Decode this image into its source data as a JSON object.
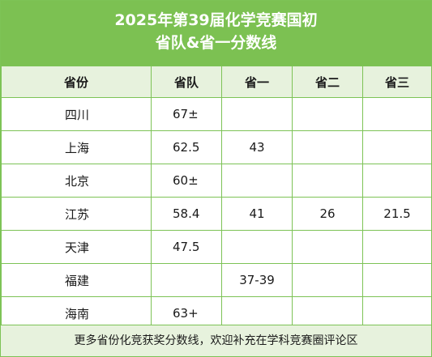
{
  "header": {
    "title_line1": "2025年第39届化学竞赛国初",
    "title_line2": "省队&省一分数线"
  },
  "table": {
    "columns": [
      "省份",
      "省队",
      "省一",
      "省二",
      "省三"
    ],
    "rows": [
      {
        "province": "四川",
        "team": "67±",
        "first": "",
        "second": "",
        "third": ""
      },
      {
        "province": "上海",
        "team": "62.5",
        "first": "43",
        "second": "",
        "third": ""
      },
      {
        "province": "北京",
        "team": "60±",
        "first": "",
        "second": "",
        "third": ""
      },
      {
        "province": "江苏",
        "team": "58.4",
        "first": "41",
        "second": "26",
        "third": "21.5"
      },
      {
        "province": "天津",
        "team": "47.5",
        "first": "",
        "second": "",
        "third": ""
      },
      {
        "province": "福建",
        "team": "",
        "first": "37-39",
        "second": "",
        "third": ""
      },
      {
        "province": "海南",
        "team": "63+",
        "first": "",
        "second": "",
        "third": ""
      }
    ]
  },
  "footer": {
    "note": "更多省份化竞获奖分数线，欢迎补充在学科竞赛圈评论区"
  },
  "colors": {
    "header_green": "#7cc152",
    "border_green": "#7dc356",
    "light_green": "#e7f2dd"
  }
}
